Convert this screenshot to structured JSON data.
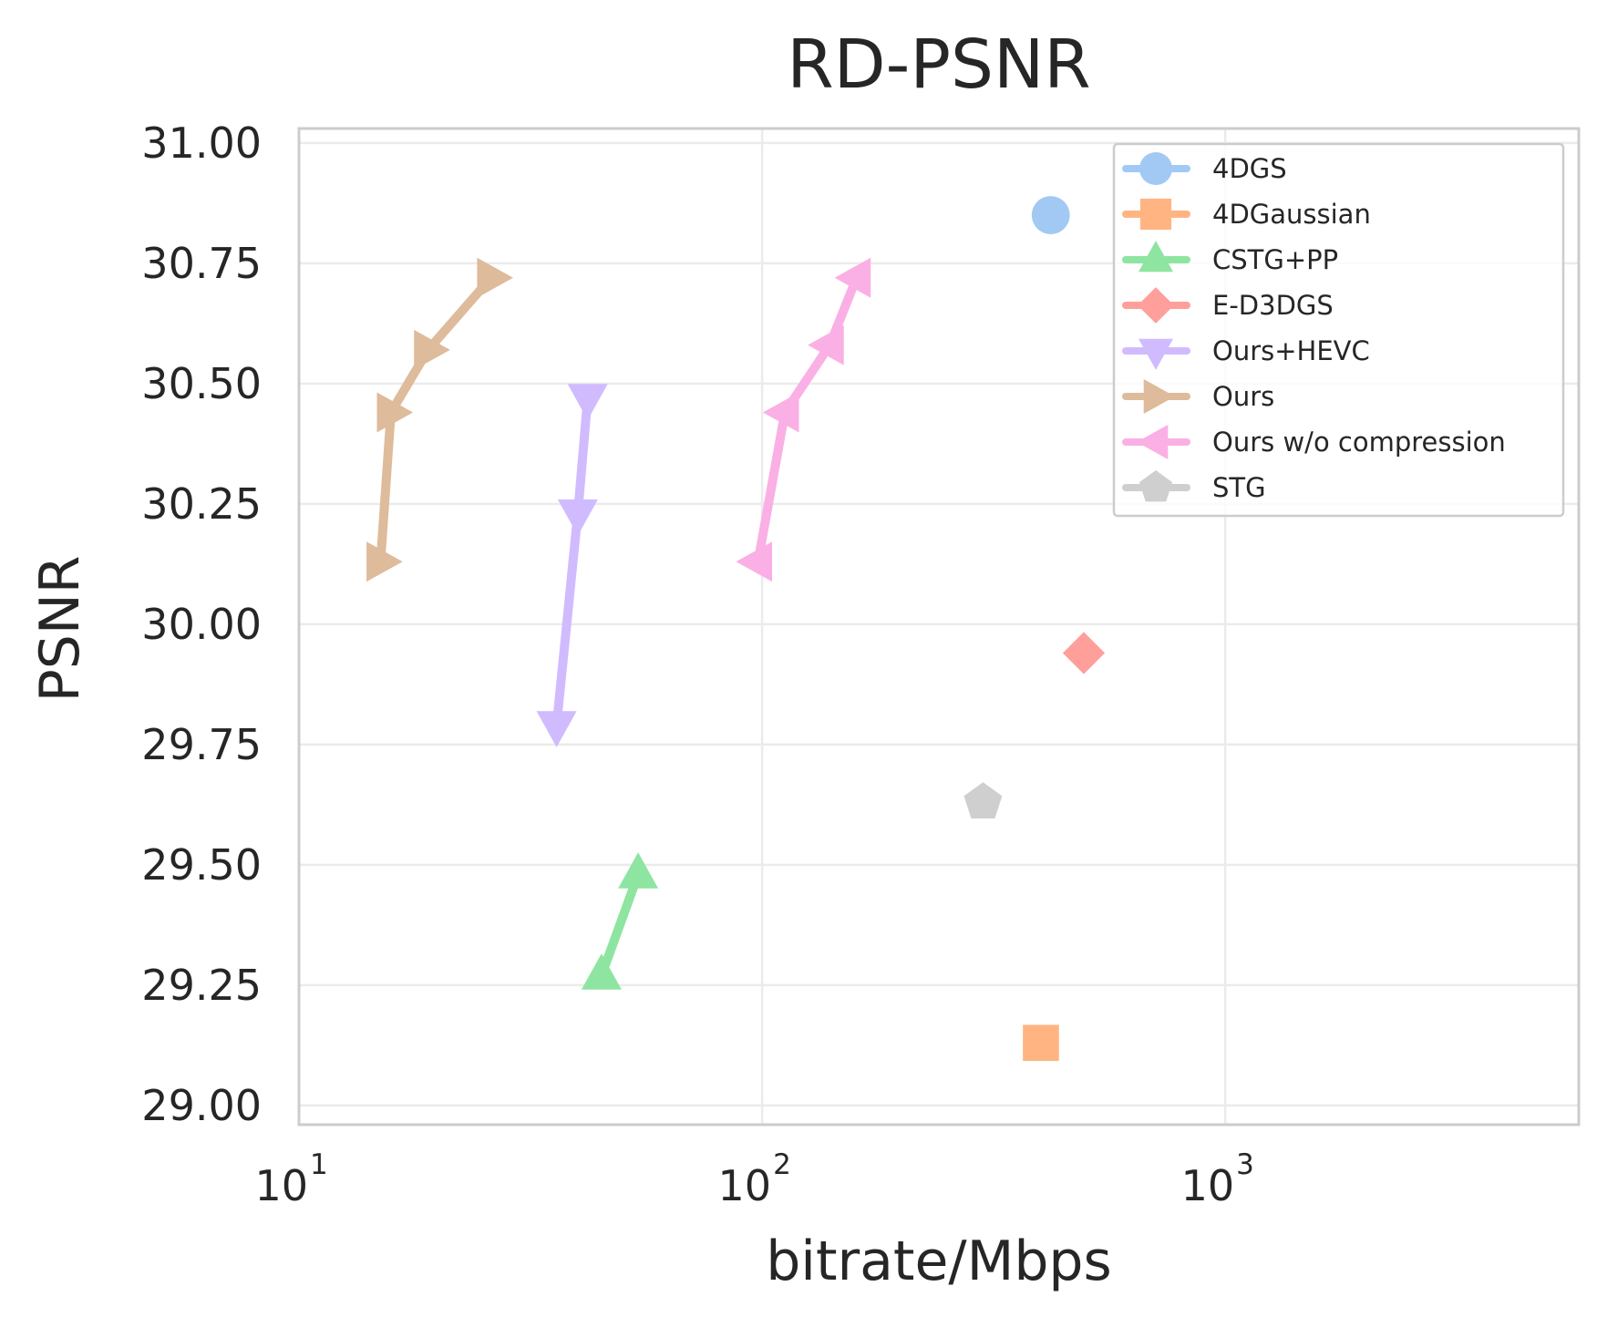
{
  "chart_data": {
    "type": "line",
    "title": "RD-PSNR",
    "xlabel": "bitrate/Mbps",
    "ylabel": "PSNR",
    "xscale": "log",
    "xlim": [
      10,
      5800
    ],
    "ylim": [
      28.96,
      31.03
    ],
    "xticks": [
      {
        "base": "10",
        "exp": "1",
        "value": 10
      },
      {
        "base": "10",
        "exp": "2",
        "value": 100
      },
      {
        "base": "10",
        "exp": "3",
        "value": 1000
      }
    ],
    "yticks": [
      "29.00",
      "29.25",
      "29.50",
      "29.75",
      "30.00",
      "30.25",
      "30.50",
      "30.75",
      "31.00"
    ],
    "grid": true,
    "legend_position": "top-right",
    "series": [
      {
        "name": "4DGS",
        "marker": "circle",
        "color": "#a1c9f4",
        "x": [
          420
        ],
        "y": [
          30.85
        ]
      },
      {
        "name": "4DGaussian",
        "marker": "square",
        "color": "#ffb482",
        "x": [
          400
        ],
        "y": [
          29.13
        ]
      },
      {
        "name": "CSTG+PP",
        "marker": "triangle-up",
        "color": "#8de5a1",
        "x": [
          45,
          54
        ],
        "y": [
          29.27,
          29.48
        ]
      },
      {
        "name": "E-D3DGS",
        "marker": "diamond",
        "color": "#ff9f9b",
        "x": [
          495
        ],
        "y": [
          29.94
        ]
      },
      {
        "name": "Ours+HEVC",
        "marker": "triangle-down",
        "color": "#d0bbff",
        "x": [
          36,
          40,
          42
        ],
        "y": [
          29.79,
          30.23,
          30.47
        ]
      },
      {
        "name": "Ours",
        "marker": "triangle-right",
        "color": "#debb9b",
        "x": [
          15,
          15.8,
          19,
          26
        ],
        "y": [
          30.13,
          30.44,
          30.57,
          30.72
        ]
      },
      {
        "name": "Ours w/o compression",
        "marker": "triangle-left",
        "color": "#fab0e4",
        "x": [
          98,
          112,
          140,
          160
        ],
        "y": [
          30.13,
          30.44,
          30.58,
          30.72
        ]
      },
      {
        "name": "STG",
        "marker": "pentagon",
        "color": "#cfcfcf",
        "x": [
          300
        ],
        "y": [
          29.63
        ]
      }
    ]
  }
}
